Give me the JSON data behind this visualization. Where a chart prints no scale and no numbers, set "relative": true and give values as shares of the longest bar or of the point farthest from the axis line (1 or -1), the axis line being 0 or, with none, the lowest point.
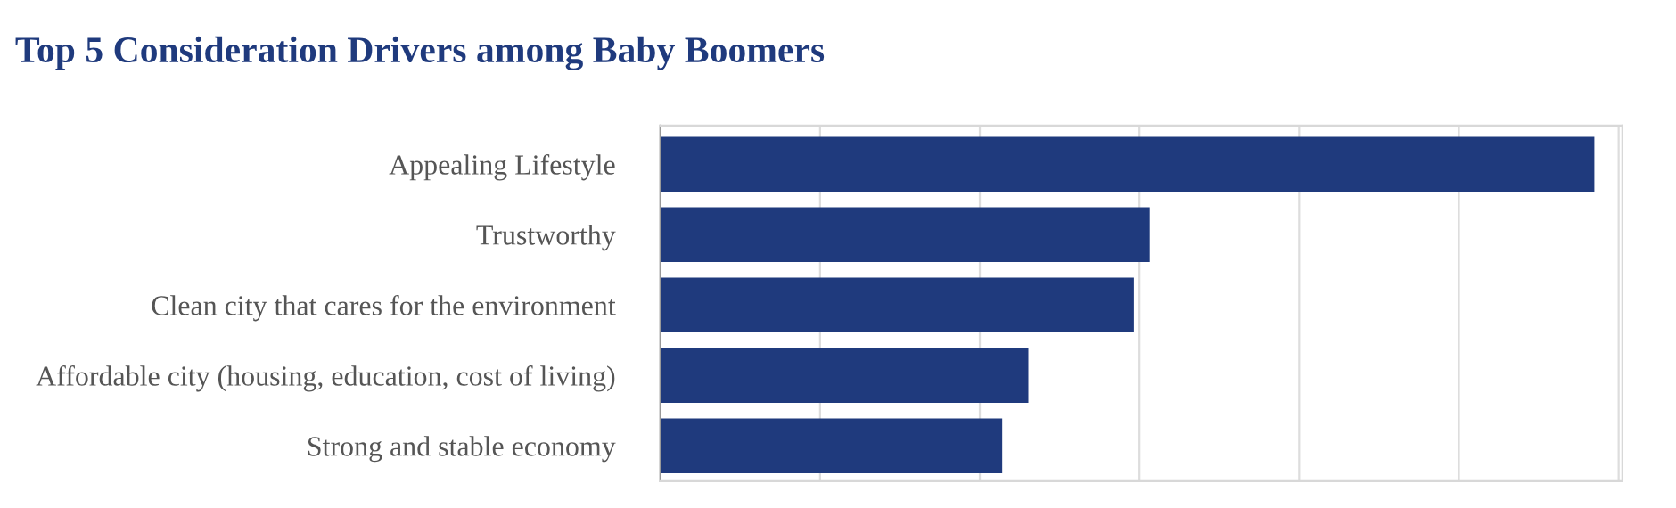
{
  "chart_data": {
    "type": "bar",
    "orientation": "horizontal",
    "relative": true,
    "title": "Top 5 Consideration Drivers among Baby Boomers",
    "categories": [
      "Appealing Lifestyle",
      "Trustworthy",
      "Clean city that cares for the environment",
      "Affordable city (housing, education, cost of living)",
      "Strong and stable economy"
    ],
    "values": [
      1,
      0.524,
      0.507,
      0.394,
      0.366
    ],
    "color": "#1f3a7d",
    "grid": "x"
  }
}
